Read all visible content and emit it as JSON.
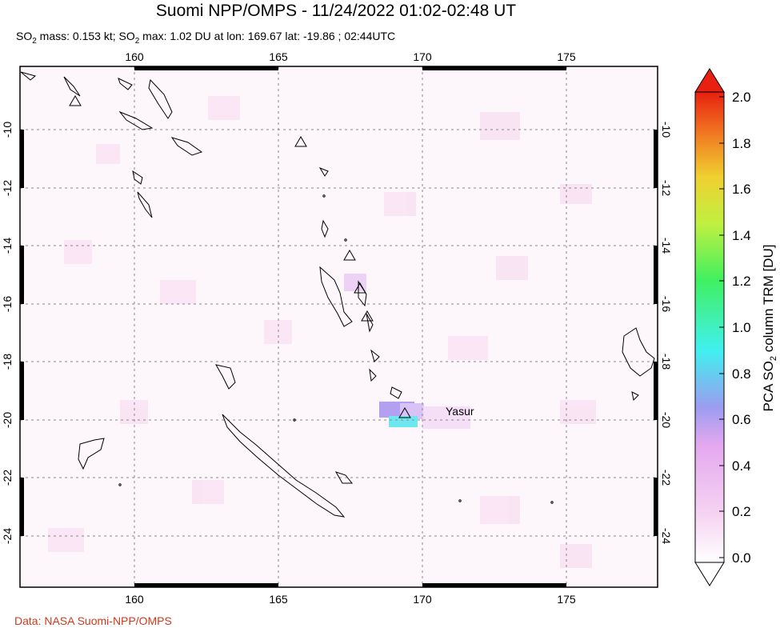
{
  "title": "Suomi NPP/OMPS - 11/24/2022 01:02-02:48 UT",
  "subtitle": {
    "so2_mass_label": "SO",
    "so2_mass_sub": "2",
    "so2_mass_text": " mass: 0.153 kt; SO",
    "so2_max_sub": "2",
    "so2_max_text": " max: 1.02 DU at lon: 169.67 lat: -19.86 ; 02:44UTC"
  },
  "credit": "Data: NASA Suomi-NPP/OMPS",
  "map": {
    "lon_ticks": [
      "160",
      "165",
      "170",
      "175"
    ],
    "lat_ticks": [
      "-10",
      "-12",
      "-14",
      "-16",
      "-18",
      "-20",
      "-22",
      "-24"
    ],
    "volcano_label": "Yasur",
    "colors": {
      "frame": "#000000",
      "grid": "#888888",
      "coast": "#000000"
    }
  },
  "colorbar": {
    "title_prefix": "PCA SO",
    "title_sub": "2",
    "title_suffix": " column TRM [DU]",
    "ticks": [
      "2.0",
      "1.8",
      "1.6",
      "1.4",
      "1.2",
      "1.0",
      "0.8",
      "0.6",
      "0.4",
      "0.2",
      "0.0"
    ],
    "colors": [
      "#ffffff",
      "#f4c8f0",
      "#b59cf0",
      "#70b4f0",
      "#40f0f0",
      "#40f080",
      "#90f040",
      "#f0f040",
      "#f0b030",
      "#f06020",
      "#e82010"
    ]
  }
}
